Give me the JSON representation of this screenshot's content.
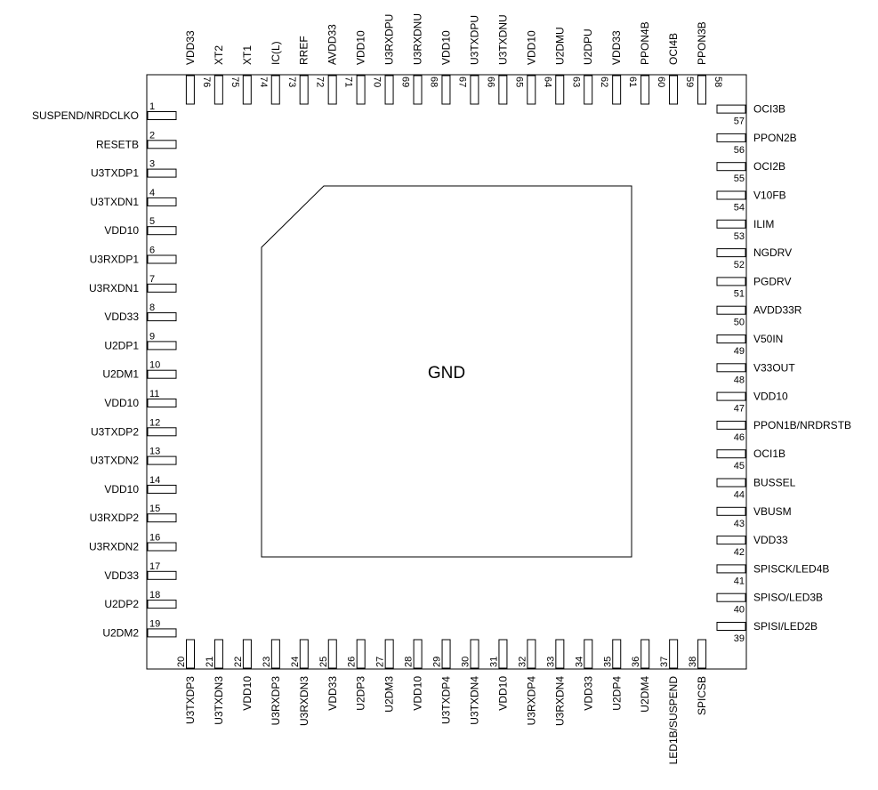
{
  "center_label": "GND",
  "pins_left": [
    {
      "num": "1",
      "name": "SUSPEND/NRDCLKO"
    },
    {
      "num": "2",
      "name": "RESETB"
    },
    {
      "num": "3",
      "name": "U3TXDP1"
    },
    {
      "num": "4",
      "name": "U3TXDN1"
    },
    {
      "num": "5",
      "name": "VDD10"
    },
    {
      "num": "6",
      "name": "U3RXDP1"
    },
    {
      "num": "7",
      "name": "U3RXDN1"
    },
    {
      "num": "8",
      "name": "VDD33"
    },
    {
      "num": "9",
      "name": "U2DP1"
    },
    {
      "num": "10",
      "name": "U2DM1"
    },
    {
      "num": "11",
      "name": "VDD10"
    },
    {
      "num": "12",
      "name": "U3TXDP2"
    },
    {
      "num": "13",
      "name": "U3TXDN2"
    },
    {
      "num": "14",
      "name": "VDD10"
    },
    {
      "num": "15",
      "name": "U3RXDP2"
    },
    {
      "num": "16",
      "name": "U3RXDN2"
    },
    {
      "num": "17",
      "name": "VDD33"
    },
    {
      "num": "18",
      "name": "U2DP2"
    },
    {
      "num": "19",
      "name": "U2DM2"
    }
  ],
  "pins_bottom": [
    {
      "num": "20",
      "name": "U3TXDP3"
    },
    {
      "num": "21",
      "name": "U3TXDN3"
    },
    {
      "num": "22",
      "name": "VDD10"
    },
    {
      "num": "23",
      "name": "U3RXDP3"
    },
    {
      "num": "24",
      "name": "U3RXDN3"
    },
    {
      "num": "25",
      "name": "VDD33"
    },
    {
      "num": "26",
      "name": "U2DP3"
    },
    {
      "num": "27",
      "name": "U2DM3"
    },
    {
      "num": "28",
      "name": "VDD10"
    },
    {
      "num": "29",
      "name": "U3TXDP4"
    },
    {
      "num": "30",
      "name": "U3TXDN4"
    },
    {
      "num": "31",
      "name": "VDD10"
    },
    {
      "num": "32",
      "name": "U3RXDP4"
    },
    {
      "num": "33",
      "name": "U3RXDN4"
    },
    {
      "num": "34",
      "name": "VDD33"
    },
    {
      "num": "35",
      "name": "U2DP4"
    },
    {
      "num": "36",
      "name": "U2DM4"
    },
    {
      "num": "37",
      "name": "LED1B/SUSPEND"
    },
    {
      "num": "38",
      "name": "SPICSB"
    }
  ],
  "pins_right": [
    {
      "num": "39",
      "name": "SPISI/LED2B"
    },
    {
      "num": "40",
      "name": "SPISO/LED3B"
    },
    {
      "num": "41",
      "name": "SPISCK/LED4B"
    },
    {
      "num": "42",
      "name": "VDD33"
    },
    {
      "num": "43",
      "name": "VBUSM"
    },
    {
      "num": "44",
      "name": "BUSSEL"
    },
    {
      "num": "45",
      "name": "OCI1B"
    },
    {
      "num": "46",
      "name": "PPON1B/NRDRSTB"
    },
    {
      "num": "47",
      "name": "VDD10"
    },
    {
      "num": "48",
      "name": "V33OUT"
    },
    {
      "num": "49",
      "name": "V50IN"
    },
    {
      "num": "50",
      "name": "AVDD33R"
    },
    {
      "num": "51",
      "name": "PGDRV"
    },
    {
      "num": "52",
      "name": "NGDRV"
    },
    {
      "num": "53",
      "name": "ILIM"
    },
    {
      "num": "54",
      "name": "V10FB"
    },
    {
      "num": "55",
      "name": "OCI2B"
    },
    {
      "num": "56",
      "name": "PPON2B"
    },
    {
      "num": "57",
      "name": "OCI3B"
    }
  ],
  "pins_top": [
    {
      "num": "58",
      "name": "PPON3B"
    },
    {
      "num": "59",
      "name": "OCI4B"
    },
    {
      "num": "60",
      "name": "PPON4B"
    },
    {
      "num": "61",
      "name": "VDD33"
    },
    {
      "num": "62",
      "name": "U2DPU"
    },
    {
      "num": "63",
      "name": "U2DMU"
    },
    {
      "num": "64",
      "name": "VDD10"
    },
    {
      "num": "65",
      "name": "U3TXDNU"
    },
    {
      "num": "66",
      "name": "U3TXDPU"
    },
    {
      "num": "67",
      "name": "VDD10"
    },
    {
      "num": "68",
      "name": "U3RXDNU"
    },
    {
      "num": "69",
      "name": "U3RXDPU"
    },
    {
      "num": "70",
      "name": "VDD10"
    },
    {
      "num": "71",
      "name": "AVDD33"
    },
    {
      "num": "72",
      "name": "RREF"
    },
    {
      "num": "73",
      "name": "IC(L)"
    },
    {
      "num": "74",
      "name": "XT1"
    },
    {
      "num": "75",
      "name": "XT2"
    },
    {
      "num": "76",
      "name": "VDD33"
    }
  ]
}
